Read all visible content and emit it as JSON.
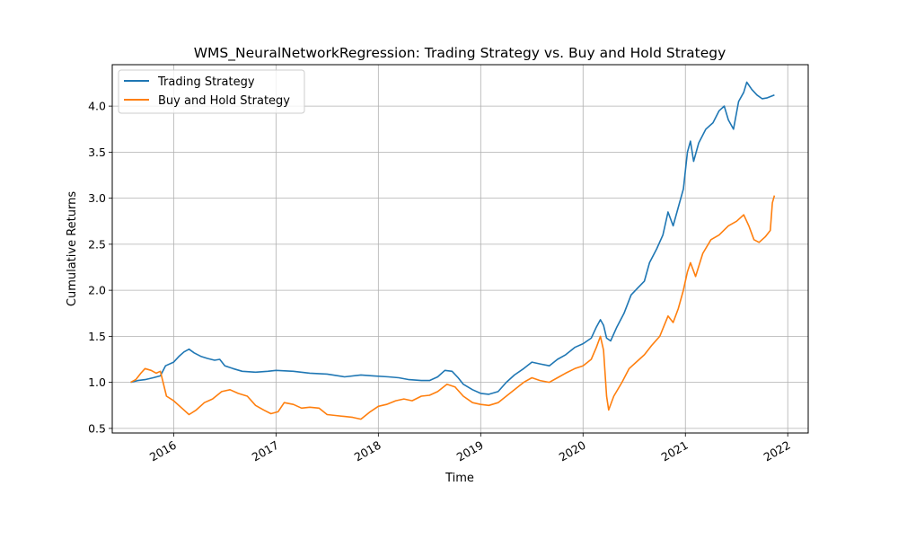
{
  "chart_data": {
    "type": "line",
    "title": "WMS_NeuralNetworkRegression: Trading Strategy vs. Buy and Hold Strategy",
    "xlabel": "Time",
    "ylabel": "Cumulative Returns",
    "xlim": [
      2015.4,
      2022.2
    ],
    "ylim": [
      0.45,
      4.45
    ],
    "grid": true,
    "legend_position": "top-left",
    "x_ticks": [
      {
        "value": 2016,
        "label": "2016"
      },
      {
        "value": 2017,
        "label": "2017"
      },
      {
        "value": 2018,
        "label": "2018"
      },
      {
        "value": 2019,
        "label": "2019"
      },
      {
        "value": 2020,
        "label": "2020"
      },
      {
        "value": 2021,
        "label": "2021"
      },
      {
        "value": 2022,
        "label": "2022"
      }
    ],
    "y_ticks": [
      {
        "value": 0.5,
        "label": "0.5"
      },
      {
        "value": 1.0,
        "label": "1.0"
      },
      {
        "value": 1.5,
        "label": "1.5"
      },
      {
        "value": 2.0,
        "label": "2.0"
      },
      {
        "value": 2.5,
        "label": "2.5"
      },
      {
        "value": 3.0,
        "label": "3.0"
      },
      {
        "value": 3.5,
        "label": "3.5"
      },
      {
        "value": 4.0,
        "label": "4.0"
      }
    ],
    "series": [
      {
        "name": "Trading Strategy",
        "color": "#1f77b4",
        "points": [
          [
            2015.58,
            1.0
          ],
          [
            2015.65,
            1.02
          ],
          [
            2015.72,
            1.03
          ],
          [
            2015.8,
            1.05
          ],
          [
            2015.87,
            1.07
          ],
          [
            2015.92,
            1.18
          ],
          [
            2016.0,
            1.22
          ],
          [
            2016.05,
            1.28
          ],
          [
            2016.1,
            1.33
          ],
          [
            2016.15,
            1.36
          ],
          [
            2016.2,
            1.32
          ],
          [
            2016.27,
            1.28
          ],
          [
            2016.33,
            1.26
          ],
          [
            2016.4,
            1.24
          ],
          [
            2016.45,
            1.25
          ],
          [
            2016.5,
            1.18
          ],
          [
            2016.58,
            1.15
          ],
          [
            2016.67,
            1.12
          ],
          [
            2016.8,
            1.11
          ],
          [
            2016.92,
            1.12
          ],
          [
            2017.0,
            1.13
          ],
          [
            2017.17,
            1.12
          ],
          [
            2017.33,
            1.1
          ],
          [
            2017.5,
            1.09
          ],
          [
            2017.67,
            1.06
          ],
          [
            2017.83,
            1.08
          ],
          [
            2017.95,
            1.07
          ],
          [
            2018.1,
            1.06
          ],
          [
            2018.2,
            1.05
          ],
          [
            2018.3,
            1.03
          ],
          [
            2018.42,
            1.02
          ],
          [
            2018.5,
            1.02
          ],
          [
            2018.58,
            1.06
          ],
          [
            2018.65,
            1.13
          ],
          [
            2018.72,
            1.12
          ],
          [
            2018.78,
            1.05
          ],
          [
            2018.83,
            0.98
          ],
          [
            2018.92,
            0.92
          ],
          [
            2019.0,
            0.88
          ],
          [
            2019.08,
            0.87
          ],
          [
            2019.17,
            0.9
          ],
          [
            2019.25,
            1.0
          ],
          [
            2019.33,
            1.08
          ],
          [
            2019.42,
            1.15
          ],
          [
            2019.5,
            1.22
          ],
          [
            2019.58,
            1.2
          ],
          [
            2019.67,
            1.18
          ],
          [
            2019.75,
            1.25
          ],
          [
            2019.83,
            1.3
          ],
          [
            2019.92,
            1.38
          ],
          [
            2020.0,
            1.42
          ],
          [
            2020.08,
            1.48
          ],
          [
            2020.13,
            1.6
          ],
          [
            2020.17,
            1.68
          ],
          [
            2020.2,
            1.62
          ],
          [
            2020.23,
            1.48
          ],
          [
            2020.27,
            1.45
          ],
          [
            2020.33,
            1.6
          ],
          [
            2020.4,
            1.75
          ],
          [
            2020.47,
            1.95
          ],
          [
            2020.53,
            2.02
          ],
          [
            2020.6,
            2.1
          ],
          [
            2020.65,
            2.3
          ],
          [
            2020.72,
            2.45
          ],
          [
            2020.78,
            2.6
          ],
          [
            2020.83,
            2.85
          ],
          [
            2020.88,
            2.7
          ],
          [
            2020.93,
            2.9
          ],
          [
            2020.98,
            3.1
          ],
          [
            2021.02,
            3.5
          ],
          [
            2021.05,
            3.62
          ],
          [
            2021.08,
            3.4
          ],
          [
            2021.13,
            3.6
          ],
          [
            2021.2,
            3.75
          ],
          [
            2021.27,
            3.82
          ],
          [
            2021.33,
            3.95
          ],
          [
            2021.38,
            4.0
          ],
          [
            2021.42,
            3.85
          ],
          [
            2021.47,
            3.75
          ],
          [
            2021.52,
            4.05
          ],
          [
            2021.57,
            4.15
          ],
          [
            2021.6,
            4.26
          ],
          [
            2021.65,
            4.18
          ],
          [
            2021.7,
            4.12
          ],
          [
            2021.75,
            4.08
          ],
          [
            2021.8,
            4.09
          ],
          [
            2021.87,
            4.12
          ]
        ]
      },
      {
        "name": "Buy and Hold Strategy",
        "color": "#ff7f0e",
        "points": [
          [
            2015.58,
            1.0
          ],
          [
            2015.63,
            1.03
          ],
          [
            2015.68,
            1.1
          ],
          [
            2015.72,
            1.15
          ],
          [
            2015.78,
            1.13
          ],
          [
            2015.83,
            1.1
          ],
          [
            2015.87,
            1.12
          ],
          [
            2015.93,
            0.85
          ],
          [
            2016.0,
            0.8
          ],
          [
            2016.08,
            0.72
          ],
          [
            2016.15,
            0.65
          ],
          [
            2016.22,
            0.7
          ],
          [
            2016.3,
            0.78
          ],
          [
            2016.38,
            0.82
          ],
          [
            2016.47,
            0.9
          ],
          [
            2016.55,
            0.92
          ],
          [
            2016.63,
            0.88
          ],
          [
            2016.72,
            0.85
          ],
          [
            2016.8,
            0.75
          ],
          [
            2016.88,
            0.7
          ],
          [
            2016.95,
            0.66
          ],
          [
            2017.02,
            0.68
          ],
          [
            2017.08,
            0.78
          ],
          [
            2017.17,
            0.76
          ],
          [
            2017.25,
            0.72
          ],
          [
            2017.33,
            0.73
          ],
          [
            2017.42,
            0.72
          ],
          [
            2017.5,
            0.65
          ],
          [
            2017.58,
            0.64
          ],
          [
            2017.67,
            0.63
          ],
          [
            2017.75,
            0.62
          ],
          [
            2017.83,
            0.6
          ],
          [
            2017.92,
            0.68
          ],
          [
            2018.0,
            0.74
          ],
          [
            2018.08,
            0.76
          ],
          [
            2018.17,
            0.8
          ],
          [
            2018.25,
            0.82
          ],
          [
            2018.33,
            0.8
          ],
          [
            2018.42,
            0.85
          ],
          [
            2018.5,
            0.86
          ],
          [
            2018.58,
            0.9
          ],
          [
            2018.67,
            0.98
          ],
          [
            2018.75,
            0.95
          ],
          [
            2018.83,
            0.85
          ],
          [
            2018.92,
            0.78
          ],
          [
            2019.0,
            0.76
          ],
          [
            2019.08,
            0.75
          ],
          [
            2019.17,
            0.78
          ],
          [
            2019.25,
            0.85
          ],
          [
            2019.33,
            0.92
          ],
          [
            2019.42,
            1.0
          ],
          [
            2019.5,
            1.05
          ],
          [
            2019.58,
            1.02
          ],
          [
            2019.67,
            1.0
          ],
          [
            2019.75,
            1.05
          ],
          [
            2019.83,
            1.1
          ],
          [
            2019.92,
            1.15
          ],
          [
            2020.0,
            1.18
          ],
          [
            2020.08,
            1.25
          ],
          [
            2020.13,
            1.38
          ],
          [
            2020.17,
            1.5
          ],
          [
            2020.2,
            1.35
          ],
          [
            2020.23,
            0.85
          ],
          [
            2020.25,
            0.7
          ],
          [
            2020.3,
            0.85
          ],
          [
            2020.38,
            1.0
          ],
          [
            2020.45,
            1.15
          ],
          [
            2020.52,
            1.22
          ],
          [
            2020.6,
            1.3
          ],
          [
            2020.67,
            1.4
          ],
          [
            2020.75,
            1.5
          ],
          [
            2020.83,
            1.72
          ],
          [
            2020.88,
            1.65
          ],
          [
            2020.93,
            1.8
          ],
          [
            2020.98,
            2.0
          ],
          [
            2021.02,
            2.2
          ],
          [
            2021.05,
            2.3
          ],
          [
            2021.1,
            2.15
          ],
          [
            2021.17,
            2.4
          ],
          [
            2021.25,
            2.55
          ],
          [
            2021.33,
            2.6
          ],
          [
            2021.42,
            2.7
          ],
          [
            2021.5,
            2.75
          ],
          [
            2021.57,
            2.82
          ],
          [
            2021.62,
            2.7
          ],
          [
            2021.67,
            2.55
          ],
          [
            2021.72,
            2.52
          ],
          [
            2021.78,
            2.58
          ],
          [
            2021.83,
            2.65
          ],
          [
            2021.85,
            2.95
          ],
          [
            2021.87,
            3.03
          ]
        ]
      }
    ]
  }
}
